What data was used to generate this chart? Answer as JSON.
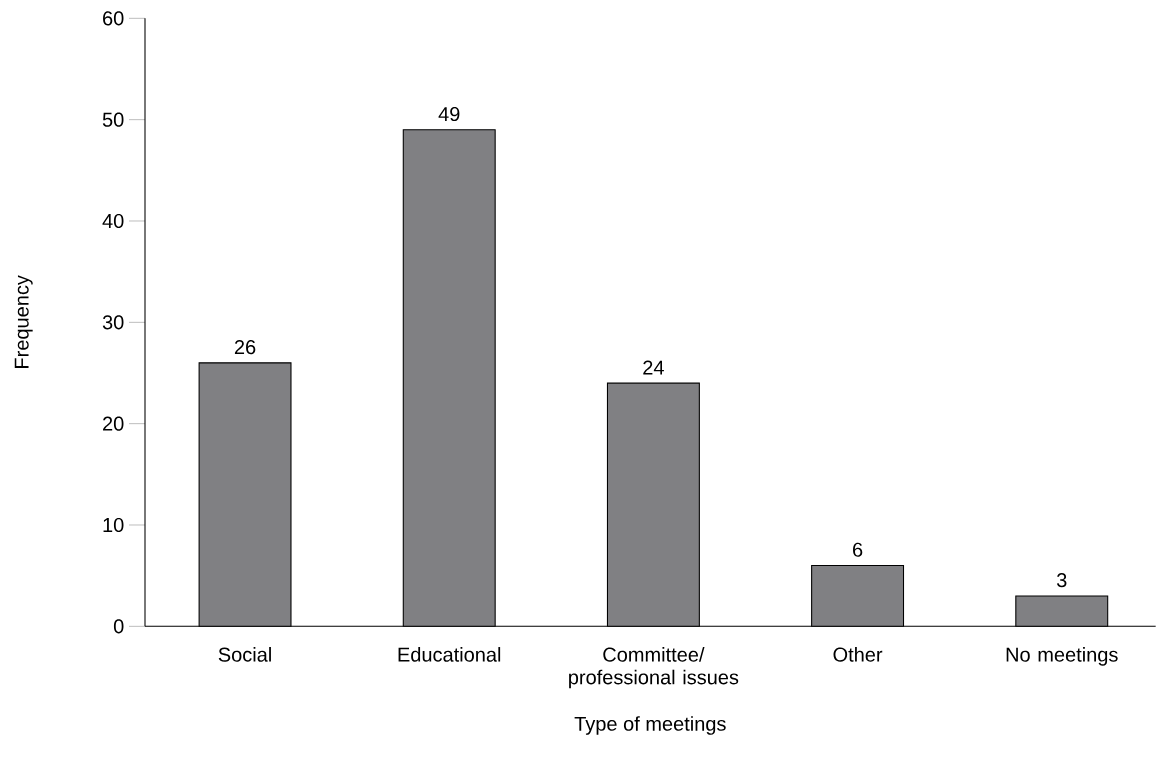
{
  "chart_data": {
    "type": "bar",
    "xlabel": "Type of meetings",
    "ylabel": "Frequency",
    "categories": [
      "Social",
      "Educational",
      "Committee/ professional issues",
      "Other",
      "No meetings"
    ],
    "values": [
      26,
      49,
      24,
      6,
      3
    ],
    "color": "#808083",
    "ylim": [
      0,
      60
    ],
    "yticks": [
      0,
      10,
      20,
      30,
      40,
      50,
      60
    ],
    "data_labels": true
  }
}
